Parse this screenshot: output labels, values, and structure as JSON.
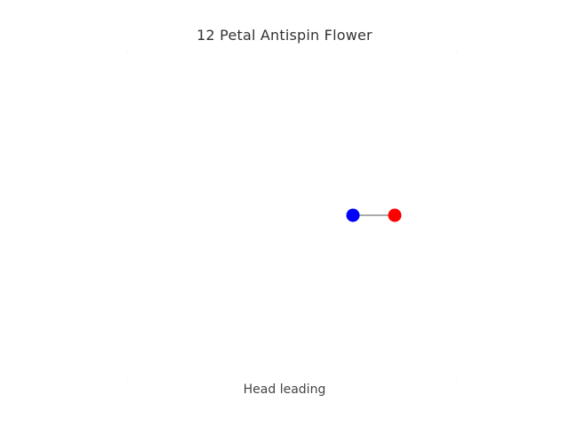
{
  "title": "12 Petal Antispin Flower",
  "caption": "Head leading",
  "colors": {
    "hand": "#0000ff",
    "head": "#ff0000",
    "tether": "#555555",
    "text": "#333333"
  },
  "icons": {
    "hand": "blue-dot-icon",
    "head": "red-dot-icon"
  }
}
